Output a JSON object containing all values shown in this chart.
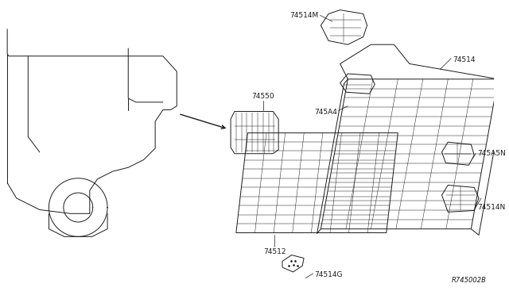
{
  "bg_color": "#ffffff",
  "line_color": "#1a1a1a",
  "fig_ref": "R745002B",
  "label_fontsize": 6.5,
  "lw": 0.7,
  "thin_lw": 0.35,
  "parts": [
    {
      "id": "74550"
    },
    {
      "id": "74512"
    },
    {
      "id": "74514G"
    },
    {
      "id": "74514M"
    },
    {
      "id": "745A4"
    },
    {
      "id": "74514"
    },
    {
      "id": "745A5N"
    },
    {
      "id": "74514N"
    }
  ]
}
